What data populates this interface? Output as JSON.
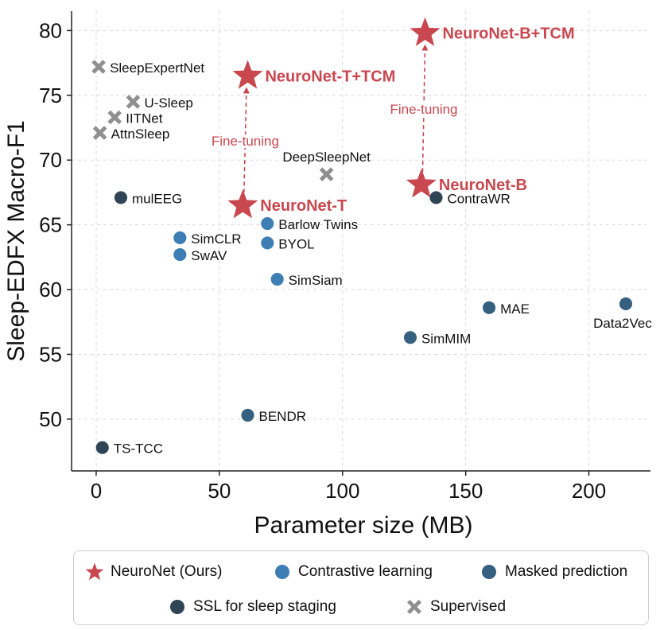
{
  "chart_data": {
    "type": "scatter",
    "xlabel": "Parameter size (MB)",
    "ylabel": "Sleep-EDFX Macro-F1",
    "xlim": [
      -10,
      225
    ],
    "ylim": [
      46,
      81.5
    ],
    "xticks": [
      0,
      50,
      100,
      150,
      200
    ],
    "yticks": [
      50,
      55,
      60,
      65,
      70,
      75,
      80
    ],
    "grid": true,
    "legend_position": "bottom",
    "colors": {
      "neuronet": "#c9474f",
      "contrastive": "#3d7eb5",
      "masked": "#35607f",
      "ssl_sleep": "#2f4556",
      "supervised": "#8f8f8f"
    },
    "legend": [
      {
        "label": "NeuroNet (Ours)",
        "group": "neuronet",
        "marker": "star"
      },
      {
        "label": "Contrastive learning",
        "group": "contrastive",
        "marker": "circle"
      },
      {
        "label": "Masked prediction",
        "group": "masked",
        "marker": "circle"
      },
      {
        "label": "SSL for sleep staging",
        "group": "ssl_sleep",
        "marker": "circle"
      },
      {
        "label": "Supervised",
        "group": "supervised",
        "marker": "x"
      }
    ],
    "points": [
      {
        "label": "NeuroNet-T",
        "x": 59.5,
        "y": 66.5,
        "group": "neuronet",
        "marker": "star",
        "bold": true,
        "label_pos": "right"
      },
      {
        "label": "NeuroNet-T+TCM",
        "x": 61.5,
        "y": 76.5,
        "group": "neuronet",
        "marker": "star",
        "bold": true,
        "label_pos": "right"
      },
      {
        "label": "NeuroNet-B",
        "x": 132,
        "y": 68.1,
        "group": "neuronet",
        "marker": "star",
        "bold": true,
        "label_pos": "right"
      },
      {
        "label": "NeuroNet-B+TCM",
        "x": 133.5,
        "y": 79.8,
        "group": "neuronet",
        "marker": "star",
        "bold": true,
        "label_pos": "right"
      },
      {
        "label": "SimCLR",
        "x": 34,
        "y": 64.0,
        "group": "contrastive",
        "marker": "circle",
        "label_pos": "right"
      },
      {
        "label": "SwAV",
        "x": 34,
        "y": 62.7,
        "group": "contrastive",
        "marker": "circle",
        "label_pos": "right"
      },
      {
        "label": "Barlow Twins",
        "x": 69.5,
        "y": 65.1,
        "group": "contrastive",
        "marker": "circle",
        "label_pos": "right"
      },
      {
        "label": "BYOL",
        "x": 69.5,
        "y": 63.6,
        "group": "contrastive",
        "marker": "circle",
        "label_pos": "right"
      },
      {
        "label": "SimSiam",
        "x": 73.5,
        "y": 60.8,
        "group": "contrastive",
        "marker": "circle",
        "label_pos": "right"
      },
      {
        "label": "MAE",
        "x": 159.5,
        "y": 58.6,
        "group": "masked",
        "marker": "circle",
        "label_pos": "right"
      },
      {
        "label": "Data2Vec",
        "x": 215,
        "y": 58.9,
        "group": "masked",
        "marker": "circle",
        "label_pos": "below"
      },
      {
        "label": "SimMIM",
        "x": 127.5,
        "y": 56.3,
        "group": "masked",
        "marker": "circle",
        "label_pos": "right"
      },
      {
        "label": "BENDR",
        "x": 61.5,
        "y": 50.3,
        "group": "masked",
        "marker": "circle",
        "label_pos": "right"
      },
      {
        "label": "mulEEG",
        "x": 10,
        "y": 67.1,
        "group": "ssl_sleep",
        "marker": "circle",
        "label_pos": "right"
      },
      {
        "label": "ContraWR",
        "x": 138,
        "y": 67.1,
        "group": "ssl_sleep",
        "marker": "circle",
        "label_pos": "right"
      },
      {
        "label": "TS-TCC",
        "x": 2.5,
        "y": 47.8,
        "group": "ssl_sleep",
        "marker": "circle",
        "label_pos": "right"
      },
      {
        "label": "SleepExpertNet",
        "x": 1,
        "y": 77.2,
        "group": "supervised",
        "marker": "x",
        "label_pos": "right"
      },
      {
        "label": "U-Sleep",
        "x": 15,
        "y": 74.5,
        "group": "supervised",
        "marker": "x",
        "label_pos": "right"
      },
      {
        "label": "IITNet",
        "x": 7.5,
        "y": 73.3,
        "group": "supervised",
        "marker": "x",
        "label_pos": "right"
      },
      {
        "label": "AttnSleep",
        "x": 1.5,
        "y": 72.1,
        "group": "supervised",
        "marker": "x",
        "label_pos": "right"
      },
      {
        "label": "DeepSleepNet",
        "x": 93.5,
        "y": 68.9,
        "group": "supervised",
        "marker": "x",
        "label_pos": "above"
      }
    ],
    "annotations": [
      {
        "text": "Fine-tuning",
        "from": [
          60,
          66.5
        ],
        "to": [
          61,
          76.5
        ]
      },
      {
        "text": "Fine-tuning",
        "from": [
          132.5,
          68.1
        ],
        "to": [
          133.5,
          79.8
        ]
      }
    ]
  }
}
